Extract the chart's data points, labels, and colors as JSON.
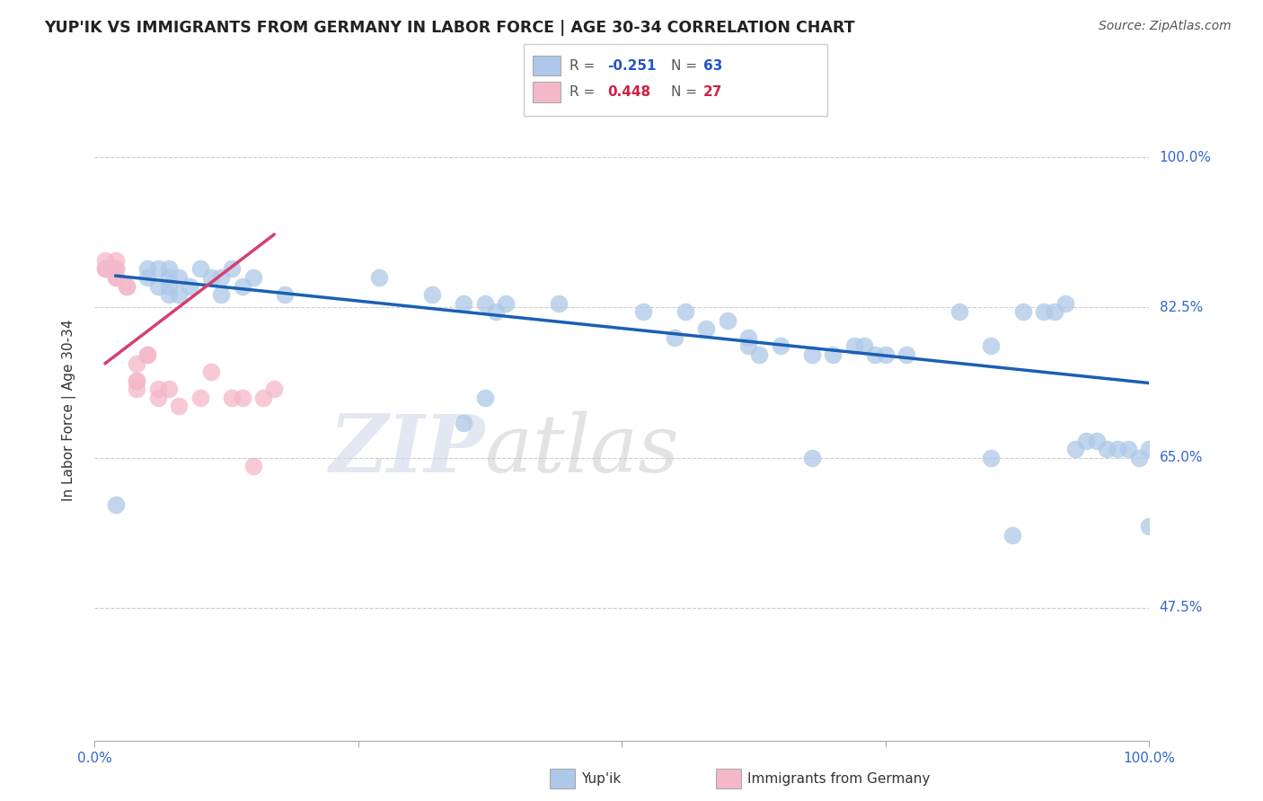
{
  "title": "YUP'IK VS IMMIGRANTS FROM GERMANY IN LABOR FORCE | AGE 30-34 CORRELATION CHART",
  "source": "Source: ZipAtlas.com",
  "ylabel": "In Labor Force | Age 30-34",
  "ytick_labels": [
    "47.5%",
    "65.0%",
    "82.5%",
    "100.0%"
  ],
  "ytick_values": [
    0.475,
    0.65,
    0.825,
    1.0
  ],
  "blue_color": "#adc8e8",
  "pink_color": "#f4b8c8",
  "trendline_blue": "#1a5fb4",
  "trendline_pink": "#d44070",
  "watermark_1": "ZIP",
  "watermark_2": "atlas",
  "blue_scatter_x": [
    0.02,
    0.05,
    0.05,
    0.06,
    0.06,
    0.07,
    0.07,
    0.07,
    0.07,
    0.08,
    0.08,
    0.09,
    0.1,
    0.11,
    0.12,
    0.12,
    0.13,
    0.14,
    0.15,
    0.18,
    0.27,
    0.32,
    0.35,
    0.37,
    0.38,
    0.39,
    0.44,
    0.52,
    0.56,
    0.58,
    0.6,
    0.62,
    0.63,
    0.65,
    0.68,
    0.7,
    0.72,
    0.73,
    0.74,
    0.75,
    0.77,
    0.82,
    0.85,
    0.88,
    0.9,
    0.91,
    0.92,
    0.93,
    0.94,
    0.95,
    0.96,
    0.97,
    0.98,
    0.99,
    1.0,
    1.0,
    0.35,
    0.37,
    0.55,
    0.62,
    0.68,
    0.85,
    0.87
  ],
  "blue_scatter_y": [
    0.595,
    0.86,
    0.87,
    0.85,
    0.87,
    0.84,
    0.85,
    0.86,
    0.87,
    0.84,
    0.86,
    0.85,
    0.87,
    0.86,
    0.84,
    0.86,
    0.87,
    0.85,
    0.86,
    0.84,
    0.86,
    0.84,
    0.83,
    0.83,
    0.82,
    0.83,
    0.83,
    0.82,
    0.82,
    0.8,
    0.81,
    0.79,
    0.77,
    0.78,
    0.77,
    0.77,
    0.78,
    0.78,
    0.77,
    0.77,
    0.77,
    0.82,
    0.78,
    0.82,
    0.82,
    0.82,
    0.83,
    0.66,
    0.67,
    0.67,
    0.66,
    0.66,
    0.66,
    0.65,
    0.66,
    0.57,
    0.69,
    0.72,
    0.79,
    0.78,
    0.65,
    0.65,
    0.56
  ],
  "pink_scatter_x": [
    0.01,
    0.01,
    0.01,
    0.02,
    0.02,
    0.02,
    0.02,
    0.02,
    0.03,
    0.03,
    0.04,
    0.04,
    0.04,
    0.04,
    0.05,
    0.05,
    0.06,
    0.06,
    0.07,
    0.08,
    0.1,
    0.11,
    0.13,
    0.14,
    0.15,
    0.16,
    0.17
  ],
  "pink_scatter_y": [
    0.87,
    0.87,
    0.88,
    0.86,
    0.86,
    0.87,
    0.87,
    0.88,
    0.85,
    0.85,
    0.73,
    0.74,
    0.74,
    0.76,
    0.77,
    0.77,
    0.72,
    0.73,
    0.73,
    0.71,
    0.72,
    0.75,
    0.72,
    0.72,
    0.64,
    0.72,
    0.73
  ],
  "xlim": [
    0.0,
    1.0
  ],
  "ylim": [
    0.32,
    1.09
  ],
  "blue_trend_x": [
    0.02,
    1.0
  ],
  "blue_trend_y": [
    0.862,
    0.737
  ],
  "pink_trend_x": [
    0.01,
    0.17
  ],
  "pink_trend_y": [
    0.76,
    0.91
  ]
}
